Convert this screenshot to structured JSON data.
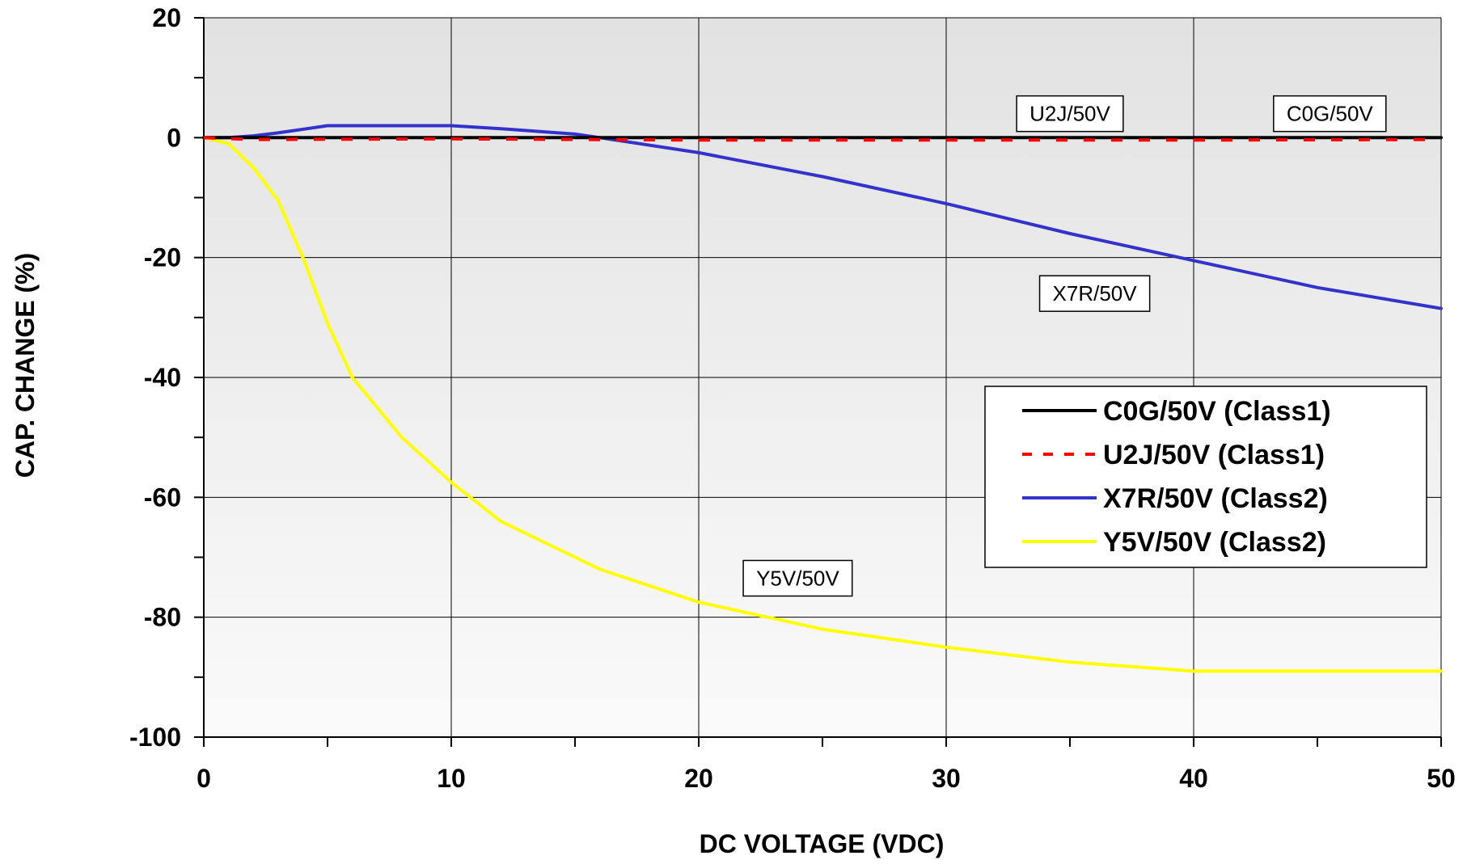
{
  "chart_data": {
    "type": "line",
    "xlabel": "DC VOLTAGE   (VDC)",
    "ylabel": "CAP. CHANGE (%)",
    "xlim": [
      0,
      50
    ],
    "ylim": [
      -100,
      20
    ],
    "xticks": [
      0,
      10,
      20,
      30,
      40,
      50
    ],
    "yticks": [
      20,
      0,
      -20,
      -40,
      -60,
      -80,
      -100
    ],
    "grid": true,
    "legend_position": "right",
    "series": [
      {
        "name": "C0G/50V (Class1)",
        "color": "#000000",
        "style": "solid",
        "x": [
          0,
          10,
          20,
          30,
          40,
          50
        ],
        "y": [
          0,
          0,
          0,
          0,
          0,
          0
        ]
      },
      {
        "name": "U2J/50V (Class1)",
        "color": "#ff0000",
        "style": "dashed",
        "x": [
          0,
          2,
          10,
          20,
          30,
          40,
          50
        ],
        "y": [
          0,
          -0.3,
          -0.2,
          -0.4,
          -0.4,
          -0.4,
          -0.3
        ]
      },
      {
        "name": "X7R/50V (Class2)",
        "color": "#3333cc",
        "style": "solid",
        "x": [
          0,
          1,
          2,
          3,
          5,
          7,
          10,
          12,
          15,
          16,
          20,
          25,
          30,
          35,
          40,
          45,
          50
        ],
        "y": [
          0,
          0,
          0.3,
          0.8,
          2,
          2,
          2,
          1.5,
          0.6,
          0,
          -2.5,
          -6.5,
          -11,
          -16,
          -20.5,
          -25,
          -28.5
        ]
      },
      {
        "name": "Y5V/50V (Class2)",
        "color": "#ffff00",
        "style": "solid",
        "x": [
          0,
          1,
          2,
          3,
          4,
          5,
          6,
          8,
          10,
          12,
          15,
          16,
          20,
          25,
          30,
          35,
          40,
          45,
          50
        ],
        "y": [
          0,
          -1,
          -5,
          -10.5,
          -20,
          -31,
          -40,
          -50,
          -57.5,
          -64,
          -70,
          -72,
          -77.5,
          -82,
          -85,
          -87.5,
          -89,
          -89,
          -89
        ]
      }
    ],
    "annotations": [
      {
        "text": "U2J/50V",
        "x": 35,
        "y": 4
      },
      {
        "text": "C0G/50V",
        "x": 45.5,
        "y": 4
      },
      {
        "text": "X7R/50V",
        "x": 36,
        "y": -26
      },
      {
        "text": "Y5V/50V",
        "x": 24,
        "y": -73.5
      }
    ]
  }
}
